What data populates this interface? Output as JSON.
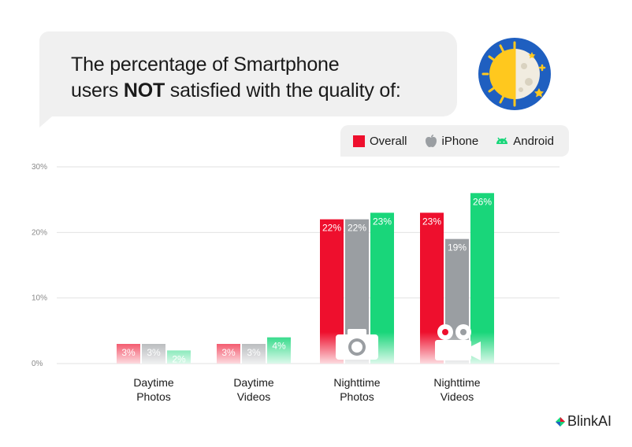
{
  "title": {
    "line1": "The percentage of Smartphone",
    "line2_pre": "users ",
    "line2_bold": "NOT",
    "line2_post": " satisfied with the quality of:"
  },
  "badge_icon": "day-night-icon",
  "colors": {
    "overall": "#ee0f2d",
    "iphone": "#9a9ea2",
    "android": "#19d67a",
    "grid": "#e2e2e2",
    "axis_text": "#8a8a8a"
  },
  "legend": {
    "overall": "Overall",
    "iphone": "iPhone",
    "android": "Android"
  },
  "brand": "BlinkAI",
  "chart_data": {
    "type": "bar",
    "categories": [
      [
        "Daytime",
        "Photos"
      ],
      [
        "Daytime",
        "Videos"
      ],
      [
        "Nighttime",
        "Photos"
      ],
      [
        "Nighttime",
        "Videos"
      ]
    ],
    "series": [
      {
        "name": "Overall",
        "values": [
          3,
          3,
          22,
          23
        ],
        "labels": [
          "3%",
          "3%",
          "22%",
          "23%"
        ]
      },
      {
        "name": "iPhone",
        "values": [
          3,
          3,
          22,
          19
        ],
        "labels": [
          "3%",
          "3%",
          "22%",
          "19%"
        ]
      },
      {
        "name": "Android",
        "values": [
          2,
          4,
          23,
          26
        ],
        "labels": [
          "2%",
          "4%",
          "23%",
          "26%"
        ]
      }
    ],
    "yticks": [
      "0%",
      "10%",
      "20%",
      "30%"
    ],
    "ylim": [
      0,
      30
    ],
    "grid": true,
    "legend_position": "top-right",
    "category_icons": [
      "",
      "",
      "camera-icon",
      "video-camera-icon"
    ]
  }
}
